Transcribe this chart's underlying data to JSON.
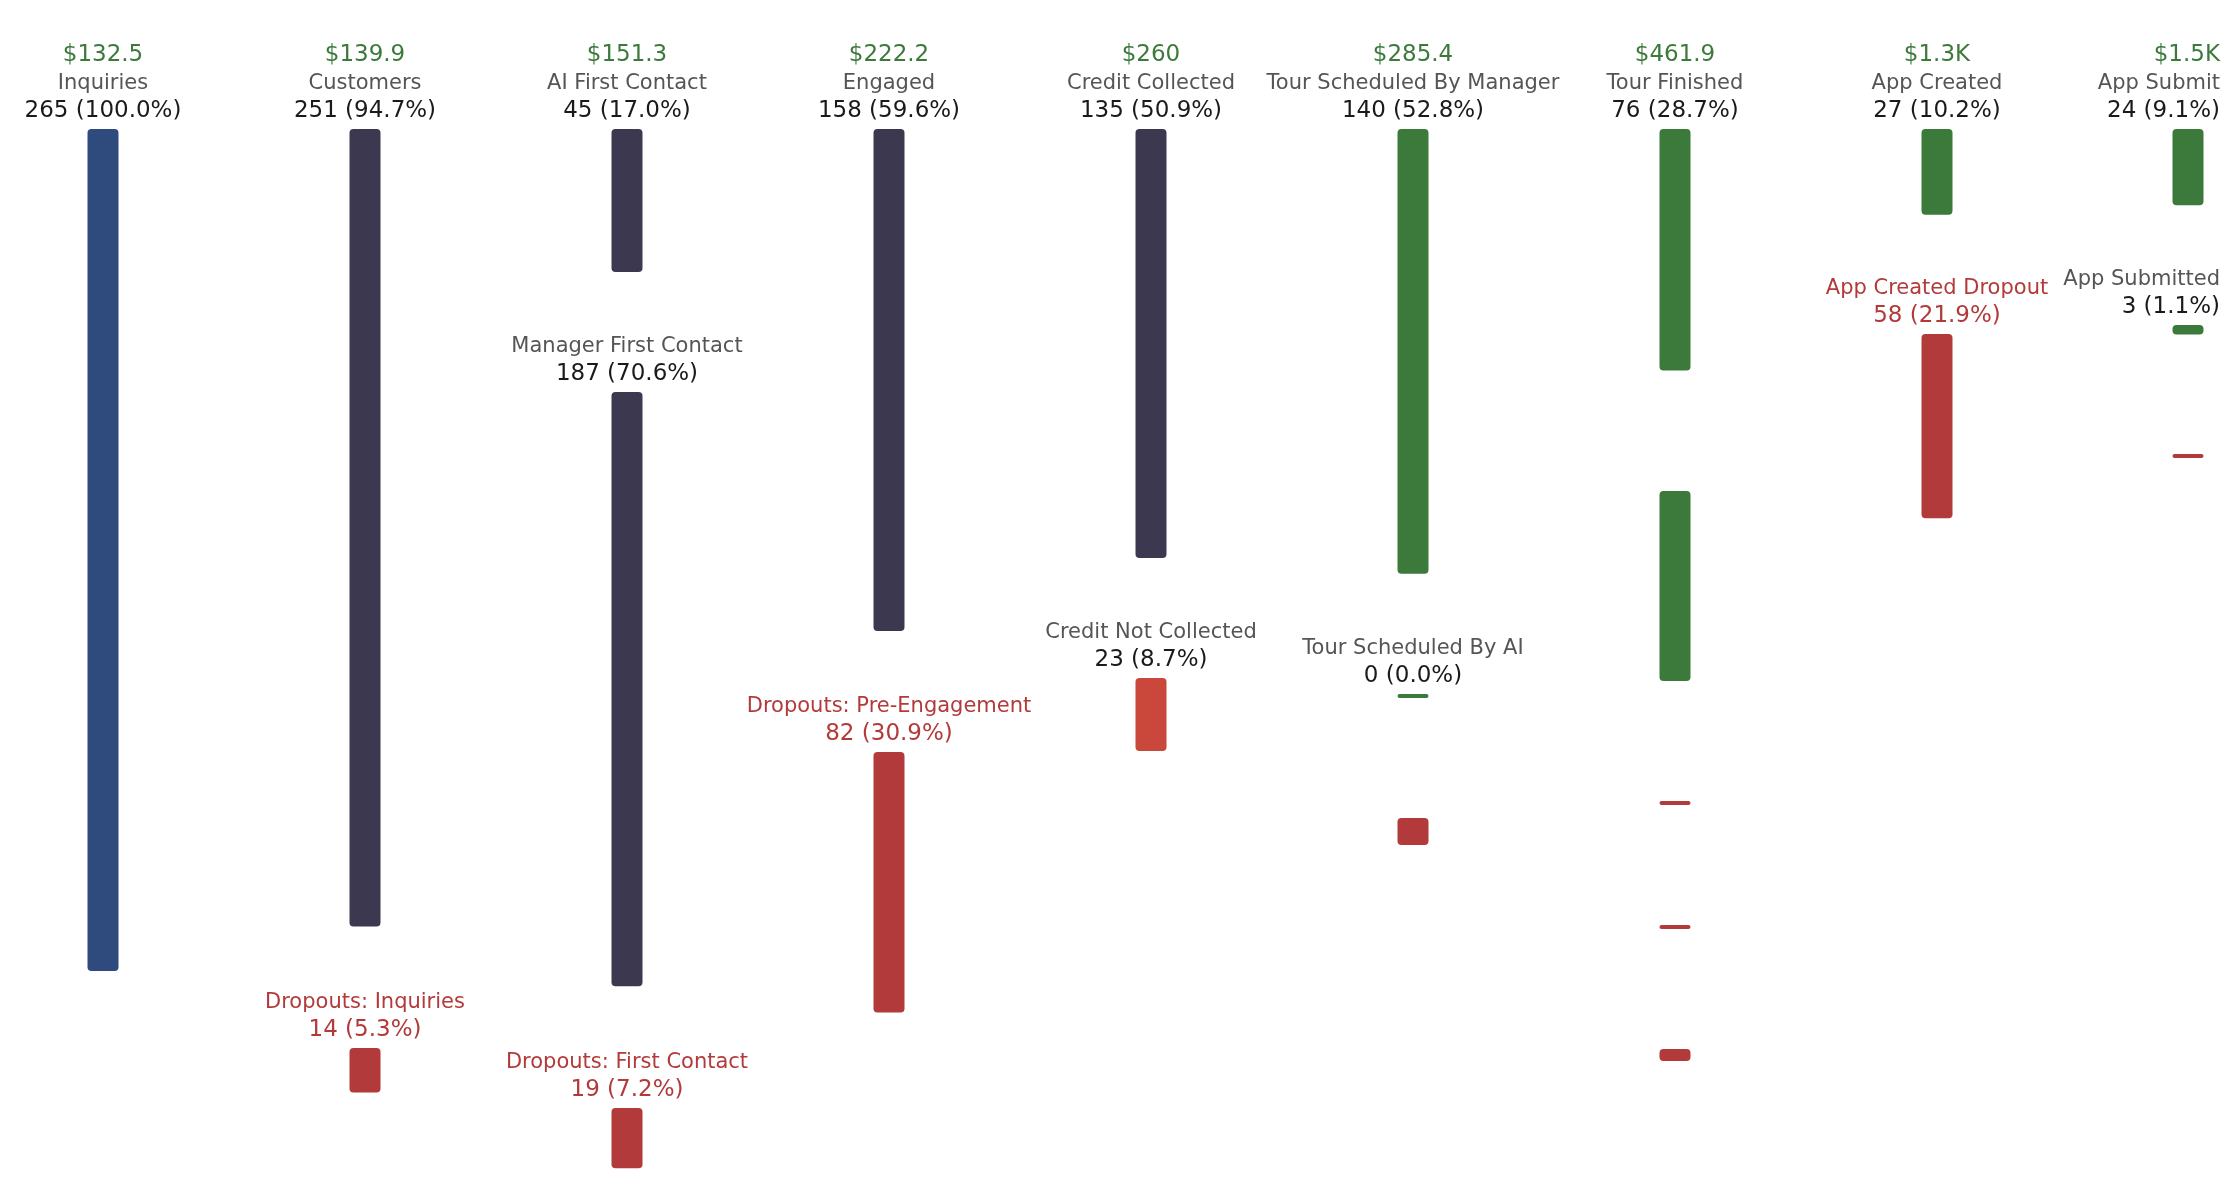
{
  "chart_data": {
    "type": "other",
    "categories": [
      "Inquiries",
      "Customers",
      "Dropouts: Inquiries",
      "AI First Contact",
      "Manager First Contact",
      "Dropouts: First Contact",
      "Engaged",
      "Dropouts: Pre-Engagement",
      "Credit Collected",
      "Credit Not Collected",
      "Tour Scheduled By Manager",
      "Tour Scheduled By AI",
      null,
      "Tour Finished",
      null,
      null,
      null,
      null,
      "App Created",
      "App Created Dropout",
      "App Submit",
      "App Submitted",
      null
    ],
    "values": [
      265,
      251,
      14,
      45,
      187,
      19,
      158,
      82,
      135,
      23,
      140,
      0,
      null,
      76,
      null,
      null,
      null,
      null,
      27,
      58,
      24,
      3,
      null
    ],
    "value_labels": [
      "265 (100.0%)",
      "251 (94.7%)",
      "14 (5.3%)",
      "45 (17.0%)",
      "187 (70.6%)",
      "19 (7.2%)",
      "158 (59.6%)",
      "82 (30.9%)",
      "135 (50.9%)",
      "23 (8.7%)",
      "140 (52.8%)",
      "0 (0.0%)",
      null,
      "76 (28.7%)",
      null,
      null,
      null,
      null,
      "27 (10.2%)",
      "58 (21.9%)",
      "24 (9.1%)",
      "3 (1.1%)",
      null
    ],
    "colors": [
      "#2f4a7c",
      "#3b3850",
      "#b33a3a",
      "#3b3850",
      "#3b3850",
      "#b33a3a",
      "#3b3850",
      "#b33a3a",
      "#3b3850",
      "#c9473b",
      "#3b7a3a",
      "#3b7a3a",
      "#b33a3a",
      "#3b7a3a",
      "#3b7a3a",
      "#b33a3a",
      "#b33a3a",
      "#b33a3a",
      "#3b7a3a",
      "#b33a3a",
      "#3b7a3a",
      "#3b7a3a",
      "#b33a3a"
    ],
    "annotations": [
      {
        "text": "$132.5",
        "x": "Inquiries"
      },
      {
        "text": "$139.9",
        "x": "Customers"
      },
      {
        "text": "$151.3",
        "x": "AI First Contact"
      },
      {
        "text": "$222.2",
        "x": "Engaged"
      },
      {
        "text": "$260",
        "x": "Credit Collected"
      },
      {
        "text": "$285.4",
        "x": "Tour Scheduled By Manager"
      },
      {
        "text": "$461.9",
        "x": "Tour Finished"
      },
      {
        "text": "$1.3K",
        "x": "App Created"
      },
      {
        "text": "$1.5K",
        "x": "App Submit"
      }
    ]
  }
}
